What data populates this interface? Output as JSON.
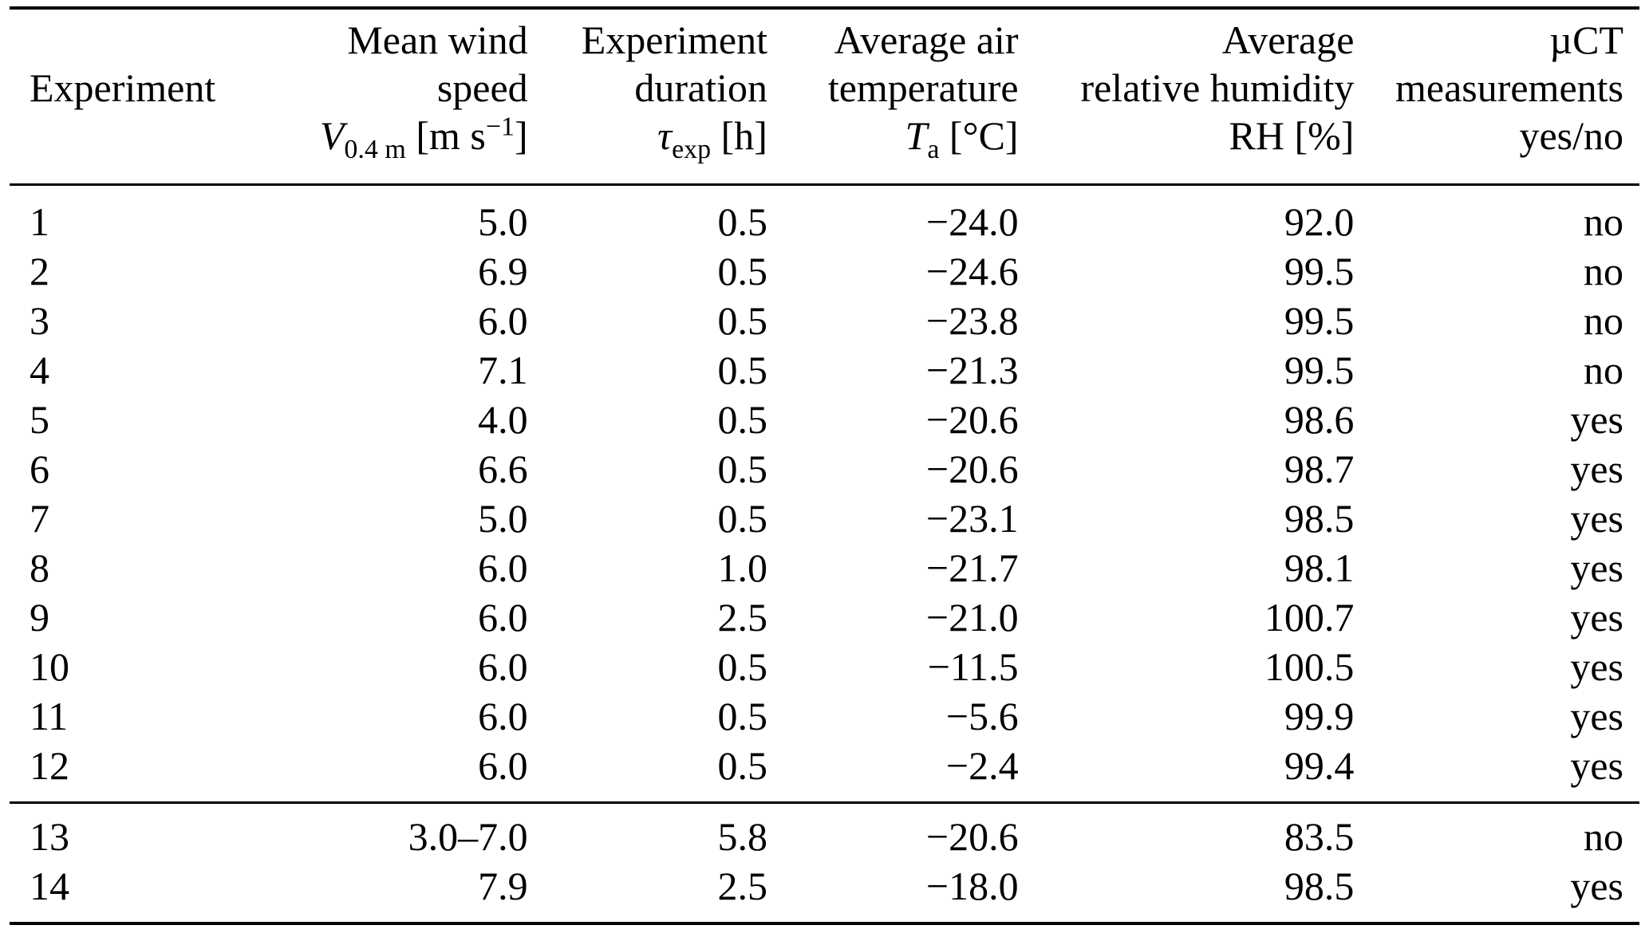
{
  "table": {
    "columns": [
      {
        "id": "experiment",
        "header_lines": [
          [],
          [
            {
              "t": "Experiment",
              "s": "plain"
            }
          ],
          []
        ]
      },
      {
        "id": "mean-wind-speed",
        "header_lines": [
          [
            {
              "t": "Mean wind",
              "s": "plain"
            }
          ],
          [
            {
              "t": "speed",
              "s": "plain"
            }
          ],
          [
            {
              "t": "V",
              "s": "i"
            },
            {
              "t": "0.4 m",
              "s": "sub"
            },
            {
              "t": " [m s",
              "s": "plain"
            },
            {
              "t": "−1",
              "s": "sup"
            },
            {
              "t": "]",
              "s": "plain"
            }
          ]
        ]
      },
      {
        "id": "experiment-duration",
        "header_lines": [
          [
            {
              "t": "Experiment",
              "s": "plain"
            }
          ],
          [
            {
              "t": "duration",
              "s": "plain"
            }
          ],
          [
            {
              "t": "τ",
              "s": "i"
            },
            {
              "t": "exp",
              "s": "sub"
            },
            {
              "t": " [h]",
              "s": "plain"
            }
          ]
        ]
      },
      {
        "id": "average-air-temperature",
        "header_lines": [
          [
            {
              "t": "Average air",
              "s": "plain"
            }
          ],
          [
            {
              "t": "temperature",
              "s": "plain"
            }
          ],
          [
            {
              "t": "T",
              "s": "i"
            },
            {
              "t": "a",
              "s": "sub"
            },
            {
              "t": " [°C]",
              "s": "plain"
            }
          ]
        ]
      },
      {
        "id": "average-relative-humidity",
        "header_lines": [
          [
            {
              "t": "Average",
              "s": "plain"
            }
          ],
          [
            {
              "t": "relative humidity",
              "s": "plain"
            }
          ],
          [
            {
              "t": "RH [%]",
              "s": "plain"
            }
          ]
        ]
      },
      {
        "id": "uct-measurements",
        "header_lines": [
          [
            {
              "t": "µCT",
              "s": "plain"
            }
          ],
          [
            {
              "t": "measurements",
              "s": "plain"
            }
          ],
          [
            {
              "t": "yes/no",
              "s": "plain"
            }
          ]
        ]
      }
    ],
    "groups": [
      {
        "name": "main",
        "rows": [
          [
            "1",
            "5.0",
            "0.5",
            "−24.0",
            "92.0",
            "no"
          ],
          [
            "2",
            "6.9",
            "0.5",
            "−24.6",
            "99.5",
            "no"
          ],
          [
            "3",
            "6.0",
            "0.5",
            "−23.8",
            "99.5",
            "no"
          ],
          [
            "4",
            "7.1",
            "0.5",
            "−21.3",
            "99.5",
            "no"
          ],
          [
            "5",
            "4.0",
            "0.5",
            "−20.6",
            "98.6",
            "yes"
          ],
          [
            "6",
            "6.6",
            "0.5",
            "−20.6",
            "98.7",
            "yes"
          ],
          [
            "7",
            "5.0",
            "0.5",
            "−23.1",
            "98.5",
            "yes"
          ],
          [
            "8",
            "6.0",
            "1.0",
            "−21.7",
            "98.1",
            "yes"
          ],
          [
            "9",
            "6.0",
            "2.5",
            "−21.0",
            "100.7",
            "yes"
          ],
          [
            "10",
            "6.0",
            "0.5",
            "−11.5",
            "100.5",
            "yes"
          ],
          [
            "11",
            "6.0",
            "0.5",
            "−5.6",
            "99.9",
            "yes"
          ],
          [
            "12",
            "6.0",
            "0.5",
            "−2.4",
            "99.4",
            "yes"
          ]
        ]
      },
      {
        "name": "footer",
        "rows": [
          [
            "13",
            "3.0–7.0",
            "5.8",
            "−20.6",
            "83.5",
            "no"
          ],
          [
            "14",
            "7.9",
            "2.5",
            "−18.0",
            "98.5",
            "yes"
          ]
        ]
      }
    ]
  },
  "chart_data": {
    "type": "table",
    "title": "",
    "columns": [
      "Experiment",
      "Mean wind speed V0.4m [m s−1]",
      "Experiment duration τexp [h]",
      "Average air temperature Ta [°C]",
      "Average relative humidity RH [%]",
      "µCT measurements yes/no"
    ],
    "rows": [
      [
        "1",
        "5.0",
        "0.5",
        "−24.0",
        "92.0",
        "no"
      ],
      [
        "2",
        "6.9",
        "0.5",
        "−24.6",
        "99.5",
        "no"
      ],
      [
        "3",
        "6.0",
        "0.5",
        "−23.8",
        "99.5",
        "no"
      ],
      [
        "4",
        "7.1",
        "0.5",
        "−21.3",
        "99.5",
        "no"
      ],
      [
        "5",
        "4.0",
        "0.5",
        "−20.6",
        "98.6",
        "yes"
      ],
      [
        "6",
        "6.6",
        "0.5",
        "−20.6",
        "98.7",
        "yes"
      ],
      [
        "7",
        "5.0",
        "0.5",
        "−23.1",
        "98.5",
        "yes"
      ],
      [
        "8",
        "6.0",
        "1.0",
        "−21.7",
        "98.1",
        "yes"
      ],
      [
        "9",
        "6.0",
        "2.5",
        "−21.0",
        "100.7",
        "yes"
      ],
      [
        "10",
        "6.0",
        "0.5",
        "−11.5",
        "100.5",
        "yes"
      ],
      [
        "11",
        "6.0",
        "0.5",
        "−5.6",
        "99.9",
        "yes"
      ],
      [
        "12",
        "6.0",
        "0.5",
        "−2.4",
        "99.4",
        "yes"
      ],
      [
        "13",
        "3.0–7.0",
        "5.8",
        "−20.6",
        "83.5",
        "no"
      ],
      [
        "14",
        "7.9",
        "2.5",
        "−18.0",
        "98.5",
        "yes"
      ]
    ]
  }
}
